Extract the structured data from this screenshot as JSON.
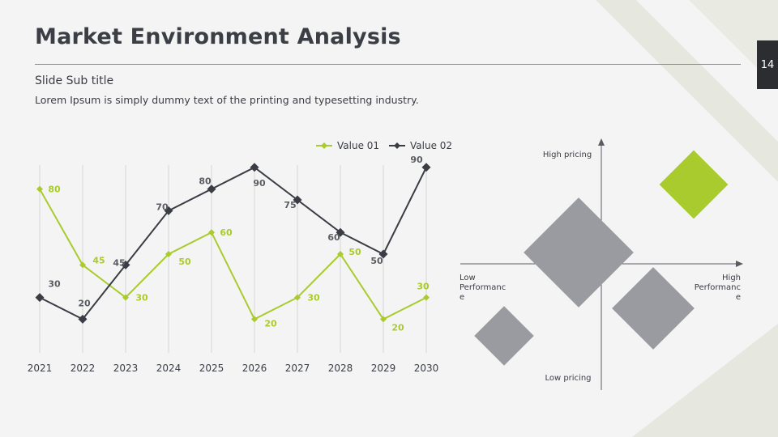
{
  "slide": {
    "title": "Market Environment Analysis",
    "subtitle": "Slide Sub title",
    "description": "Lorem Ipsum is simply dummy text of the printing and typesetting industry.",
    "page_number": "14"
  },
  "colors": {
    "accent_green": "#a9cb2e",
    "dark": "#3a3d44",
    "gray_diamond": "#9a9ba1",
    "grid": "#d8d8d8",
    "decor": "#e4e5dc"
  },
  "chart_data": [
    {
      "type": "line",
      "categories": [
        "2021",
        "2022",
        "2023",
        "2024",
        "2025",
        "2026",
        "2027",
        "2028",
        "2029",
        "2030"
      ],
      "series": [
        {
          "name": "Value 01",
          "color": "#a9cb2e",
          "values": [
            80,
            45,
            30,
            50,
            60,
            20,
            30,
            50,
            20,
            30
          ]
        },
        {
          "name": "Value 02",
          "color": "#3a3d44",
          "values": [
            30,
            20,
            45,
            70,
            80,
            90,
            75,
            60,
            50,
            90
          ]
        }
      ],
      "ylim": [
        0,
        100
      ],
      "grid": "vertical",
      "legend": "top-right",
      "marker": "diamond",
      "data_labels": true
    },
    {
      "type": "scatter",
      "title": "",
      "axis_labels": {
        "top": "High pricing",
        "bottom": "Low pricing",
        "left": "Low Performanc e",
        "right": "High Performanc e"
      },
      "legend": "none"
    }
  ]
}
